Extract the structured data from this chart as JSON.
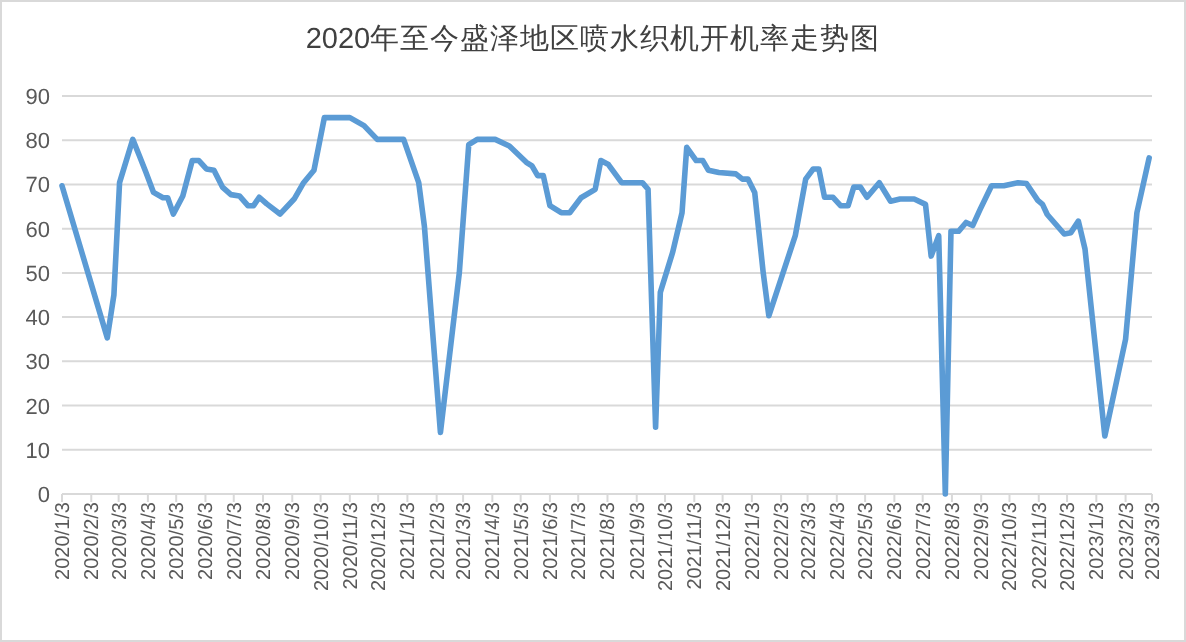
{
  "chart_data": {
    "type": "line",
    "title": "2020年至今盛泽地区喷水织机开机率走势图",
    "x": [
      "2020-01-03",
      "2020-02-20",
      "2020-02-27",
      "2020-03-04",
      "2020-03-18",
      "2020-03-25",
      "2020-04-01",
      "2020-04-09",
      "2020-04-19",
      "2020-04-24",
      "2020-04-30",
      "2020-05-10",
      "2020-05-20",
      "2020-05-27",
      "2020-06-04",
      "2020-06-12",
      "2020-06-21",
      "2020-06-30",
      "2020-07-09",
      "2020-07-18",
      "2020-07-24",
      "2020-07-30",
      "2020-08-07",
      "2020-08-21",
      "2020-09-05",
      "2020-09-15",
      "2020-09-26",
      "2020-10-07",
      "2020-11-03",
      "2020-11-18",
      "2020-12-02",
      "2020-12-30",
      "2021-01-15",
      "2021-01-21",
      "2021-02-07",
      "2021-02-27",
      "2021-03-09",
      "2021-03-18",
      "2021-04-06",
      "2021-04-21",
      "2021-05-09",
      "2021-05-15",
      "2021-05-21",
      "2021-05-27",
      "2021-06-03",
      "2021-06-15",
      "2021-06-24",
      "2021-07-06",
      "2021-07-21",
      "2021-07-27",
      "2021-08-04",
      "2021-08-18",
      "2021-09-09",
      "2021-09-15",
      "2021-09-23",
      "2021-09-28",
      "2021-10-11",
      "2021-10-21",
      "2021-10-26",
      "2021-11-05",
      "2021-11-12",
      "2021-11-18",
      "2021-11-29",
      "2021-12-17",
      "2021-12-24",
      "2021-12-30",
      "2022-01-06",
      "2022-01-15",
      "2022-01-21",
      "2022-02-18",
      "2022-03-01",
      "2022-03-09",
      "2022-03-15",
      "2022-03-21",
      "2022-03-30",
      "2022-04-07",
      "2022-04-15",
      "2022-04-21",
      "2022-04-28",
      "2022-05-05",
      "2022-05-18",
      "2022-05-30",
      "2022-06-09",
      "2022-06-24",
      "2022-07-06",
      "2022-07-12",
      "2022-07-20",
      "2022-07-27",
      "2022-08-02",
      "2022-08-10",
      "2022-08-18",
      "2022-08-25",
      "2022-09-02",
      "2022-09-14",
      "2022-09-27",
      "2022-10-12",
      "2022-10-21",
      "2022-11-02",
      "2022-11-07",
      "2022-11-12",
      "2022-11-30",
      "2022-12-07",
      "2022-12-15",
      "2022-12-22",
      "2023-01-12",
      "2023-02-03",
      "2023-02-15",
      "2023-02-28"
    ],
    "series": [
      {
        "color": "#5b9bd5",
        "values": [
          69.7,
          35.3,
          45,
          70.4,
          80.2,
          76.5,
          72.7,
          68.2,
          67,
          67,
          63.3,
          67.4,
          75.4,
          75.4,
          73.5,
          73.2,
          69.4,
          67.7,
          67.4,
          65.2,
          65.2,
          67.1,
          65.6,
          63.3,
          66.7,
          70.4,
          73.2,
          85.1,
          85.1,
          83.3,
          80.2,
          80.2,
          70.4,
          60.6,
          13.9,
          50,
          79,
          80.2,
          80.2,
          78.7,
          75,
          74.2,
          72,
          72,
          65.2,
          63.6,
          63.6,
          67,
          68.9,
          75.4,
          74.5,
          70.4,
          70.4,
          68.9,
          15.1,
          45.6,
          54.6,
          63.6,
          78.4,
          75.4,
          75.4,
          73.2,
          72.7,
          72.4,
          71.2,
          71.2,
          68.2,
          50.1,
          40.3,
          58.4,
          71.2,
          73.5,
          73.5,
          67.1,
          67.1,
          65.2,
          65.2,
          69.4,
          69.4,
          67.1,
          70.4,
          66.2,
          66.7,
          66.7,
          65.5,
          53.8,
          58.4,
          0,
          59.4,
          59.4,
          61.4,
          60.7,
          64.4,
          69.7,
          69.7,
          70.4,
          70.2,
          66.4,
          65.5,
          63.2,
          58.8,
          59.1,
          61.7,
          55.4,
          13.1,
          35,
          63.6,
          76
        ]
      }
    ],
    "xlim": [
      "2020-01-03",
      "2023-03-03"
    ],
    "xticks": [
      {
        "value": "2020-01-03",
        "label": "2020/1/3"
      },
      {
        "value": "2020-02-03",
        "label": "2020/2/3"
      },
      {
        "value": "2020-03-03",
        "label": "2020/3/3"
      },
      {
        "value": "2020-04-03",
        "label": "2020/4/3"
      },
      {
        "value": "2020-05-03",
        "label": "2020/5/3"
      },
      {
        "value": "2020-06-03",
        "label": "2020/6/3"
      },
      {
        "value": "2020-07-03",
        "label": "2020/7/3"
      },
      {
        "value": "2020-08-03",
        "label": "2020/8/3"
      },
      {
        "value": "2020-09-03",
        "label": "2020/9/3"
      },
      {
        "value": "2020-10-03",
        "label": "2020/10/3"
      },
      {
        "value": "2020-11-03",
        "label": "2020/11/3"
      },
      {
        "value": "2020-12-03",
        "label": "2020/12/3"
      },
      {
        "value": "2021-01-03",
        "label": "2021/1/3"
      },
      {
        "value": "2021-02-03",
        "label": "2021/2/3"
      },
      {
        "value": "2021-03-03",
        "label": "2021/3/3"
      },
      {
        "value": "2021-04-03",
        "label": "2021/4/3"
      },
      {
        "value": "2021-05-03",
        "label": "2021/5/3"
      },
      {
        "value": "2021-06-03",
        "label": "2021/6/3"
      },
      {
        "value": "2021-07-03",
        "label": "2021/7/3"
      },
      {
        "value": "2021-08-03",
        "label": "2021/8/3"
      },
      {
        "value": "2021-09-03",
        "label": "2021/9/3"
      },
      {
        "value": "2021-10-03",
        "label": "2021/10/3"
      },
      {
        "value": "2021-11-03",
        "label": "2021/11/3"
      },
      {
        "value": "2021-12-03",
        "label": "2021/12/3"
      },
      {
        "value": "2022-01-03",
        "label": "2022/1/3"
      },
      {
        "value": "2022-02-03",
        "label": "2022/2/3"
      },
      {
        "value": "2022-03-03",
        "label": "2022/3/3"
      },
      {
        "value": "2022-04-03",
        "label": "2022/4/3"
      },
      {
        "value": "2022-05-03",
        "label": "2022/5/3"
      },
      {
        "value": "2022-06-03",
        "label": "2022/6/3"
      },
      {
        "value": "2022-07-03",
        "label": "2022/7/3"
      },
      {
        "value": "2022-08-03",
        "label": "2022/8/3"
      },
      {
        "value": "2022-09-03",
        "label": "2022/9/3"
      },
      {
        "value": "2022-10-03",
        "label": "2022/10/3"
      },
      {
        "value": "2022-11-03",
        "label": "2022/11/3"
      },
      {
        "value": "2022-12-03",
        "label": "2022/12/3"
      },
      {
        "value": "2023-01-03",
        "label": "2023/1/3"
      },
      {
        "value": "2023-02-03",
        "label": "2023/2/3"
      },
      {
        "value": "2023-03-03",
        "label": "2023/3/3"
      }
    ],
    "ylim": [
      0,
      90
    ],
    "yticks": [
      0,
      10,
      20,
      30,
      40,
      50,
      60,
      70,
      80,
      90
    ],
    "grid": "y"
  }
}
